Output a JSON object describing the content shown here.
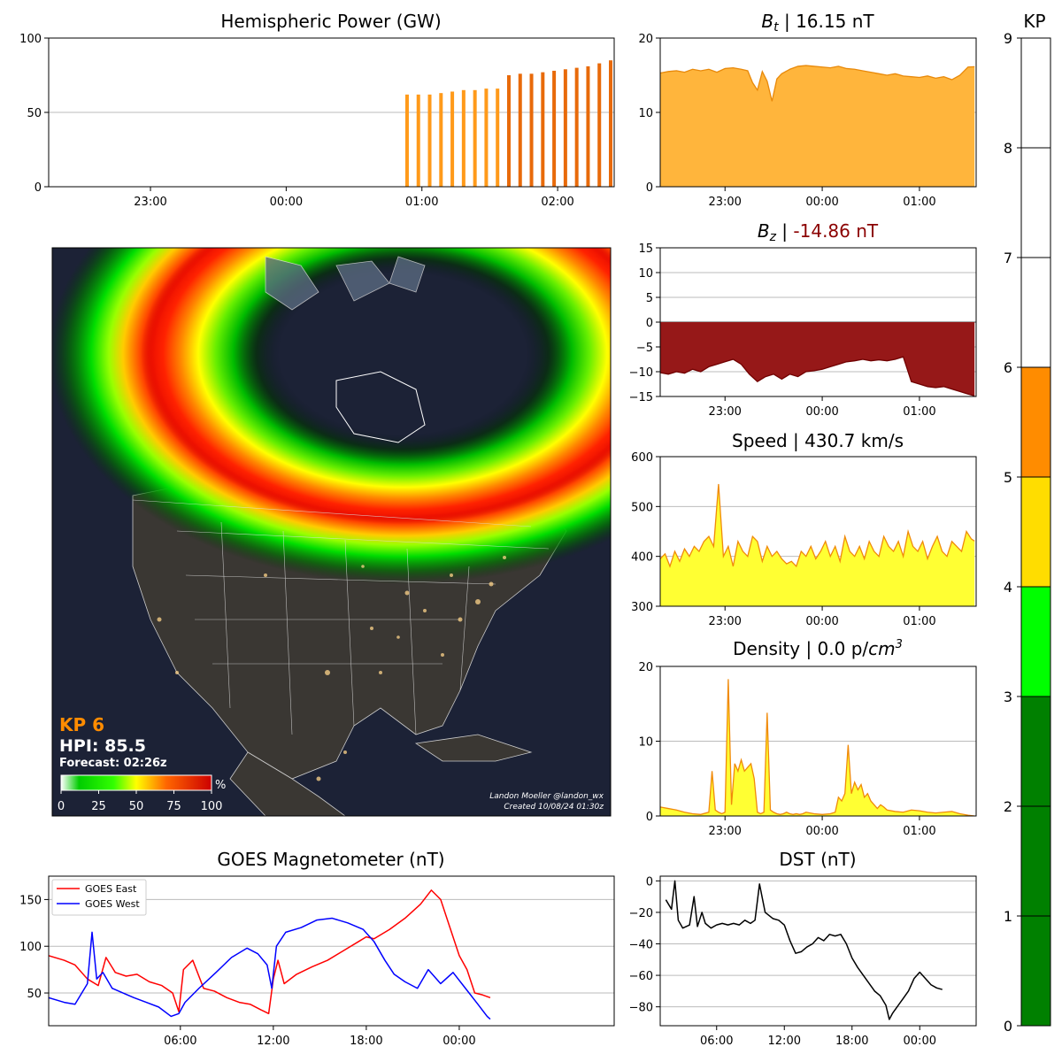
{
  "hemispheric_power": {
    "title": "Hemispheric Power (GW)",
    "chart_data": {
      "type": "bar",
      "ylim": [
        0,
        100
      ],
      "yticks": [
        "0",
        "50",
        "100"
      ],
      "xlim": [
        -105,
        145
      ],
      "xticks": [
        {
          "x": -60,
          "label": "23:00"
        },
        {
          "x": 0,
          "label": "00:00"
        },
        {
          "x": 60,
          "label": "01:00"
        },
        {
          "x": 120,
          "label": "02:00"
        }
      ],
      "grid": "horizontal",
      "bars": [
        {
          "x": 55,
          "value": 62,
          "color": "#ff9a1a"
        },
        {
          "x": 60,
          "value": 62,
          "color": "#ff9a1a"
        },
        {
          "x": 65,
          "value": 62,
          "color": "#ff9a1a"
        },
        {
          "x": 70,
          "value": 63,
          "color": "#ff9a1a"
        },
        {
          "x": 75,
          "value": 64,
          "color": "#ff9a1a"
        },
        {
          "x": 80,
          "value": 65,
          "color": "#ff9a1a"
        },
        {
          "x": 85,
          "value": 65,
          "color": "#ff9a1a"
        },
        {
          "x": 90,
          "value": 66,
          "color": "#ff9a1a"
        },
        {
          "x": 95,
          "value": 66,
          "color": "#ff9a1a"
        },
        {
          "x": 100,
          "value": 75,
          "color": "#e86a0a"
        },
        {
          "x": 105,
          "value": 76,
          "color": "#e86a0a"
        },
        {
          "x": 110,
          "value": 76,
          "color": "#e86a0a"
        },
        {
          "x": 115,
          "value": 77,
          "color": "#e86a0a"
        },
        {
          "x": 120,
          "value": 78,
          "color": "#e86a0a"
        },
        {
          "x": 125,
          "value": 79,
          "color": "#e86a0a"
        },
        {
          "x": 130,
          "value": 80,
          "color": "#e86a0a"
        },
        {
          "x": 135,
          "value": 81,
          "color": "#e86a0a"
        },
        {
          "x": 140,
          "value": 83,
          "color": "#e86a0a"
        },
        {
          "x": 145,
          "value": 85,
          "color": "#e86a0a"
        }
      ]
    }
  },
  "bt": {
    "title_prefix": "B",
    "title_sub": "t",
    "title_suffix": " | 16.15 nT",
    "chart_data": {
      "type": "area",
      "ylim": [
        0,
        20
      ],
      "yticks": [
        "0",
        "10",
        "20"
      ],
      "xlim": [
        -100,
        95
      ],
      "xticks": [
        {
          "x": -60,
          "label": "23:00"
        },
        {
          "x": 0,
          "label": "00:00"
        },
        {
          "x": 60,
          "label": "01:00"
        }
      ],
      "grid": "horizontal",
      "fill_color": "#ffb53c",
      "line_color": "#e8890a",
      "x": [
        -100,
        -95,
        -90,
        -85,
        -80,
        -75,
        -70,
        -65,
        -60,
        -55,
        -50,
        -46,
        -43,
        -40,
        -37,
        -34,
        -31,
        -28,
        -25,
        -20,
        -15,
        -10,
        -5,
        0,
        5,
        10,
        15,
        20,
        25,
        30,
        35,
        40,
        45,
        50,
        55,
        60,
        65,
        70,
        75,
        80,
        85,
        90,
        94
      ],
      "y": [
        15.3,
        15.5,
        15.6,
        15.4,
        15.8,
        15.6,
        15.8,
        15.4,
        15.9,
        16.0,
        15.8,
        15.6,
        14.0,
        13.0,
        15.5,
        14.2,
        11.5,
        14.5,
        15.2,
        15.8,
        16.2,
        16.3,
        16.2,
        16.1,
        16.0,
        16.2,
        15.9,
        15.8,
        15.6,
        15.4,
        15.2,
        15.0,
        15.2,
        14.9,
        14.8,
        14.7,
        14.9,
        14.6,
        14.8,
        14.4,
        15.0,
        16.1,
        16.15
      ]
    }
  },
  "bz": {
    "title_prefix": "B",
    "title_sub": "z",
    "title_sep": " | ",
    "title_value": "-14.86 nT",
    "value_color": "#8b0000",
    "chart_data": {
      "type": "area",
      "ylim": [
        -15,
        15
      ],
      "yticks": [
        "−15",
        "−10",
        "−5",
        "0",
        "5",
        "10",
        "15"
      ],
      "xlim": [
        -100,
        95
      ],
      "xticks": [
        {
          "x": -60,
          "label": "23:00"
        },
        {
          "x": 0,
          "label": "00:00"
        },
        {
          "x": 60,
          "label": "01:00"
        }
      ],
      "grid": "horizontal",
      "fill_color": "#961818",
      "line_color": "#700000",
      "x": [
        -100,
        -95,
        -90,
        -85,
        -80,
        -75,
        -70,
        -65,
        -60,
        -55,
        -50,
        -45,
        -40,
        -35,
        -30,
        -25,
        -20,
        -15,
        -10,
        -5,
        0,
        5,
        10,
        15,
        20,
        25,
        30,
        35,
        40,
        45,
        50,
        55,
        60,
        65,
        70,
        75,
        80,
        85,
        90,
        94
      ],
      "y": [
        -10.2,
        -10.5,
        -10.0,
        -10.3,
        -9.5,
        -10.0,
        -9.0,
        -8.5,
        -8.0,
        -7.5,
        -8.5,
        -10.5,
        -12.0,
        -11.0,
        -10.5,
        -11.5,
        -10.5,
        -11.0,
        -10.0,
        -9.8,
        -9.5,
        -9.0,
        -8.5,
        -8.0,
        -7.8,
        -7.5,
        -7.8,
        -7.6,
        -7.8,
        -7.5,
        -7.0,
        -12.0,
        -12.5,
        -13.0,
        -13.2,
        -13.0,
        -13.5,
        -14.0,
        -14.5,
        -14.86
      ]
    }
  },
  "speed": {
    "title": "Speed | 430.7 km/s",
    "chart_data": {
      "type": "area",
      "ylim": [
        300,
        600
      ],
      "yticks": [
        "300",
        "400",
        "500",
        "600"
      ],
      "xlim": [
        -100,
        95
      ],
      "xticks": [
        {
          "x": -60,
          "label": "23:00"
        },
        {
          "x": 0,
          "label": "00:00"
        },
        {
          "x": 60,
          "label": "01:00"
        }
      ],
      "grid": "horizontal",
      "fill_color": "#ffff33",
      "line_color": "#f08a0a",
      "x": [
        -100,
        -97,
        -94,
        -91,
        -88,
        -85,
        -82,
        -79,
        -76,
        -73,
        -70,
        -67,
        -64,
        -61,
        -58,
        -55,
        -52,
        -49,
        -46,
        -43,
        -40,
        -37,
        -34,
        -31,
        -28,
        -25,
        -22,
        -19,
        -16,
        -13,
        -10,
        -7,
        -4,
        -1,
        2,
        5,
        8,
        11,
        14,
        17,
        20,
        23,
        26,
        29,
        32,
        35,
        38,
        41,
        44,
        47,
        50,
        53,
        56,
        59,
        62,
        65,
        68,
        71,
        74,
        77,
        80,
        83,
        86,
        89,
        92,
        94
      ],
      "y": [
        395,
        405,
        380,
        410,
        390,
        415,
        400,
        420,
        410,
        430,
        440,
        420,
        545,
        400,
        420,
        380,
        430,
        410,
        400,
        440,
        430,
        390,
        420,
        400,
        410,
        395,
        385,
        390,
        380,
        410,
        400,
        420,
        395,
        410,
        430,
        400,
        420,
        390,
        440,
        410,
        400,
        420,
        395,
        430,
        410,
        400,
        440,
        420,
        410,
        430,
        400,
        450,
        420,
        410,
        430,
        395,
        420,
        440,
        410,
        400,
        430,
        420,
        410,
        450,
        435,
        430.7
      ]
    }
  },
  "density": {
    "title_prefix": "Density | 0.0 p/",
    "title_unit_base": "cm",
    "title_unit_sup": "3",
    "chart_data": {
      "type": "area",
      "ylim": [
        0,
        20
      ],
      "yticks": [
        "0",
        "10",
        "20"
      ],
      "xlim": [
        -100,
        95
      ],
      "xticks": [
        {
          "x": -60,
          "label": "23:00"
        },
        {
          "x": 0,
          "label": "00:00"
        },
        {
          "x": 60,
          "label": "01:00"
        }
      ],
      "grid": "horizontal",
      "fill_color": "#ffff33",
      "line_color": "#f08a0a",
      "x": [
        -100,
        -95,
        -90,
        -85,
        -80,
        -75,
        -70,
        -68,
        -66,
        -64,
        -62,
        -60,
        -58,
        -56,
        -54,
        -52,
        -50,
        -48,
        -46,
        -44,
        -42,
        -40,
        -38,
        -36,
        -34,
        -32,
        -30,
        -28,
        -26,
        -24,
        -22,
        -20,
        -18,
        -16,
        -14,
        -12,
        -10,
        -5,
        0,
        5,
        8,
        10,
        12,
        14,
        16,
        18,
        20,
        22,
        24,
        26,
        28,
        30,
        32,
        34,
        36,
        38,
        40,
        45,
        50,
        55,
        60,
        65,
        70,
        75,
        80,
        85,
        90,
        94
      ],
      "y": [
        1.2,
        1.0,
        0.8,
        0.5,
        0.3,
        0.2,
        0.5,
        6.0,
        0.8,
        0.5,
        0.3,
        0.5,
        18.3,
        1.5,
        7.0,
        6.0,
        7.5,
        6.0,
        6.5,
        7.0,
        5.0,
        0.5,
        0.3,
        0.5,
        13.8,
        0.8,
        0.5,
        0.3,
        0.2,
        0.3,
        0.5,
        0.3,
        0.2,
        0.3,
        0.2,
        0.3,
        0.5,
        0.3,
        0.2,
        0.3,
        0.5,
        2.5,
        2.0,
        3.0,
        9.5,
        3.0,
        4.5,
        3.5,
        4.2,
        2.5,
        3.0,
        2.0,
        1.5,
        1.0,
        1.5,
        1.2,
        0.8,
        0.6,
        0.5,
        0.8,
        0.7,
        0.5,
        0.4,
        0.5,
        0.6,
        0.3,
        0.1,
        0.0
      ]
    }
  },
  "goes": {
    "title": "GOES Magnetometer (nT)",
    "chart_data": {
      "type": "line",
      "xlim": [
        -2.5,
        34
      ],
      "ylim": [
        15,
        175
      ],
      "yticks": [
        {
          "v": 50,
          "label": "50"
        },
        {
          "v": 100,
          "label": "100"
        },
        {
          "v": 150,
          "label": "150"
        }
      ],
      "xticks": [
        {
          "x": 6,
          "label": "06:00"
        },
        {
          "x": 12,
          "label": "12:00"
        },
        {
          "x": 18,
          "label": "18:00"
        },
        {
          "x": 24,
          "label": "00:00"
        }
      ],
      "grid": "horizontal",
      "legend_position": "top-left",
      "series": [
        {
          "name": "GOES East",
          "color": "#ff0000",
          "x": [
            -2.5,
            -1.5,
            -0.8,
            0,
            0.7,
            1.2,
            1.8,
            2.5,
            3.2,
            4,
            4.8,
            5.5,
            5.9,
            6.2,
            6.8,
            7.5,
            8.2,
            9,
            9.8,
            10.5,
            11.2,
            11.7,
            12,
            12.3,
            12.7,
            13.5,
            14.5,
            15.5,
            16.5,
            17.5,
            18,
            18.5,
            19.5,
            20.5,
            21.5,
            22.2,
            22.8,
            23.4,
            24,
            24.5,
            25,
            25.5,
            26
          ],
          "y": [
            90,
            85,
            80,
            65,
            58,
            88,
            72,
            68,
            70,
            62,
            58,
            50,
            30,
            75,
            85,
            55,
            52,
            45,
            40,
            38,
            32,
            28,
            65,
            85,
            60,
            70,
            78,
            85,
            95,
            105,
            110,
            108,
            118,
            130,
            145,
            160,
            150,
            120,
            90,
            75,
            50,
            48,
            45
          ]
        },
        {
          "name": "GOES West",
          "color": "#0000ff",
          "x": [
            -2.5,
            -1.5,
            -0.8,
            0,
            0.3,
            0.6,
            1,
            1.6,
            2.3,
            3,
            3.8,
            4.6,
            5.4,
            5.9,
            6.3,
            7.2,
            8.3,
            9.3,
            10.3,
            11,
            11.6,
            11.9,
            12.2,
            12.8,
            13.8,
            14.8,
            15.8,
            16.8,
            17.8,
            18.5,
            19.2,
            19.8,
            20.5,
            21.3,
            22,
            22.8,
            23.6,
            24.4,
            25.2,
            25.8,
            26
          ],
          "y": [
            45,
            40,
            38,
            60,
            115,
            65,
            72,
            55,
            50,
            45,
            40,
            35,
            25,
            28,
            40,
            55,
            72,
            88,
            98,
            92,
            80,
            55,
            100,
            115,
            120,
            128,
            130,
            125,
            118,
            105,
            85,
            70,
            62,
            55,
            75,
            60,
            72,
            55,
            38,
            25,
            22
          ]
        }
      ]
    }
  },
  "dst": {
    "title": "DST (nT)",
    "chart_data": {
      "type": "line",
      "xlim": [
        1,
        29
      ],
      "ylim": [
        -92,
        3
      ],
      "yticks": [
        {
          "v": 0,
          "label": "0"
        },
        {
          "v": -20,
          "label": "−20"
        },
        {
          "v": -40,
          "label": "−40"
        },
        {
          "v": -60,
          "label": "−60"
        },
        {
          "v": -80,
          "label": "−80"
        }
      ],
      "xticks": [
        {
          "x": 6,
          "label": "06:00"
        },
        {
          "x": 12,
          "label": "12:00"
        },
        {
          "x": 18,
          "label": "18:00"
        },
        {
          "x": 24,
          "label": "00:00"
        }
      ],
      "grid": "horizontal",
      "series": [
        {
          "name": "",
          "color": "#000000",
          "x": [
            1.5,
            2,
            2.3,
            2.6,
            3,
            3.6,
            4,
            4.3,
            4.7,
            5,
            5.5,
            6,
            6.5,
            7,
            7.5,
            8,
            8.5,
            9,
            9.4,
            9.8,
            10.3,
            11,
            11.5,
            12,
            12.5,
            13,
            13.5,
            14,
            14.5,
            15,
            15.5,
            16,
            16.5,
            17,
            17.5,
            18,
            18.5,
            19,
            19.5,
            20,
            20.5,
            21,
            21.3,
            21.6,
            22,
            22.5,
            23,
            23.5,
            24,
            24.5,
            25,
            25.5,
            26
          ],
          "y": [
            -12,
            -18,
            0,
            -25,
            -30,
            -28,
            -10,
            -29,
            -20,
            -27,
            -30,
            -28,
            -27,
            -28,
            -27,
            -28,
            -25,
            -27,
            -25,
            -2,
            -20,
            -24,
            -25,
            -28,
            -38,
            -46,
            -45,
            -42,
            -40,
            -36,
            -38,
            -34,
            -35,
            -34,
            -40,
            -49,
            -55,
            -60,
            -65,
            -70,
            -73,
            -79,
            -88,
            -84,
            -80,
            -75,
            -70,
            -62,
            -58,
            -62,
            -66,
            -68,
            -69
          ]
        }
      ]
    }
  },
  "kp_bar": {
    "title": "KP",
    "chart_data": {
      "type": "bar",
      "ylim": [
        0,
        9
      ],
      "value": 6,
      "yticks": [
        "0",
        "1",
        "2",
        "3",
        "4",
        "5",
        "6",
        "7",
        "8",
        "9"
      ],
      "bands": [
        {
          "from": 0,
          "to": 3,
          "color": "#008000"
        },
        {
          "from": 3,
          "to": 4,
          "color": "#00ff00"
        },
        {
          "from": 4,
          "to": 5,
          "color": "#ffdd00"
        },
        {
          "from": 5,
          "to": 6,
          "color": "#ff8c00"
        },
        {
          "from": 6,
          "to": 9,
          "color": "#ffffff"
        }
      ]
    }
  },
  "map": {
    "kp_label": "KP 6",
    "hpi_label": "HPI: 85.5",
    "forecast_label": "Forecast: 02:26z",
    "colorbar_unit": "%",
    "colorbar_ticks": [
      "0",
      "25",
      "50",
      "75",
      "100"
    ],
    "credit_line1": "Landon Moeller @landon_wx",
    "credit_line2": "Created 10/08/24 01:30z"
  },
  "colors": {
    "grid": "#bbbbbb",
    "kp_accent": "#ff8c00",
    "map_bg": "#1a1e2b"
  }
}
